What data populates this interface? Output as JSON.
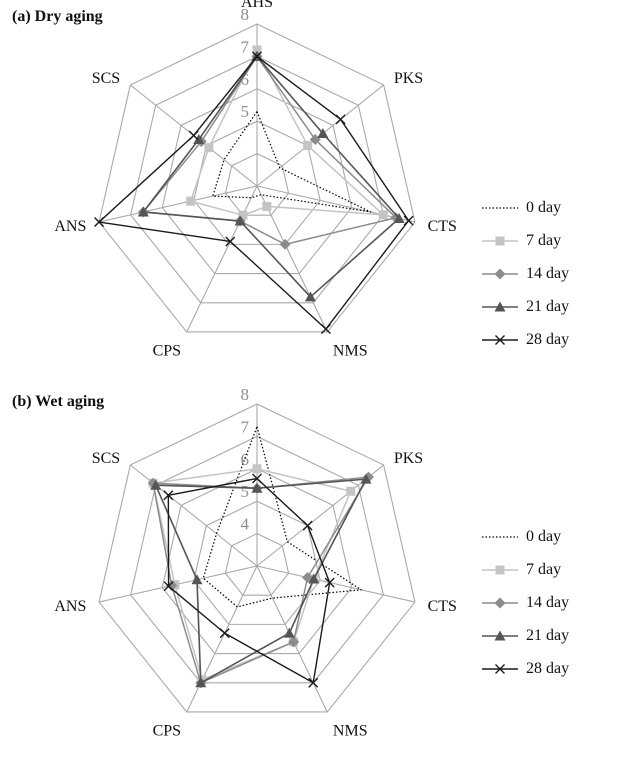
{
  "figure": {
    "legend": [
      "0 day",
      "7 day",
      "14 day",
      "21 day",
      "28 day"
    ],
    "series_styles": [
      {
        "color": "#000000",
        "dash": "1.5,2",
        "marker": "none",
        "width": 1.2
      },
      {
        "color": "#c4c4c4",
        "dash": "",
        "marker": "square",
        "width": 1.5
      },
      {
        "color": "#8c8c8c",
        "dash": "",
        "marker": "diamond",
        "width": 1.5
      },
      {
        "color": "#555555",
        "dash": "",
        "marker": "triangle",
        "width": 1.6
      },
      {
        "color": "#1a1a1a",
        "dash": "",
        "marker": "x",
        "width": 1.4
      }
    ]
  },
  "chart_data": [
    {
      "type": "radar",
      "title": "(a) Dry aging",
      "axes": [
        "AHS",
        "PKS",
        "CTS",
        "NMS",
        "CPS",
        "ANS",
        "SCS"
      ],
      "rlim": [
        3,
        8
      ],
      "ticks": [
        4,
        5,
        6,
        7,
        8
      ],
      "tick_labels": [
        "",
        "5",
        "6",
        "7",
        "8"
      ],
      "series": [
        {
          "name": "0 day",
          "values": [
            5.3,
            3.9,
            6.6,
            3.3,
            3.4,
            4.4,
            4.3
          ]
        },
        {
          "name": "7 day",
          "values": [
            7.2,
            5.0,
            7.0,
            3.7,
            4.0,
            5.1,
            4.9
          ]
        },
        {
          "name": "14 day",
          "values": [
            7.0,
            5.3,
            7.4,
            5.0,
            4.2,
            6.6,
            5.2
          ]
        },
        {
          "name": "21 day",
          "values": [
            7.0,
            5.6,
            7.5,
            6.8,
            4.2,
            6.6,
            5.3
          ]
        },
        {
          "name": "28 day",
          "values": [
            7.0,
            6.3,
            7.8,
            7.9,
            4.9,
            8.0,
            5.5
          ]
        }
      ]
    },
    {
      "type": "radar",
      "title": "(b) Wet aging",
      "axes": [
        "AHS",
        "PKS",
        "CTS",
        "NMS",
        "CPS",
        "ANS",
        "SCS"
      ],
      "rlim": [
        3,
        8
      ],
      "ticks": [
        4,
        5,
        6,
        7,
        8
      ],
      "tick_labels": [
        "4",
        "5",
        "6",
        "7",
        "8"
      ],
      "series": [
        {
          "name": "0 day",
          "values": [
            7.3,
            4.2,
            6.3,
            4.1,
            4.4,
            4.7,
            4.6
          ]
        },
        {
          "name": "7 day",
          "values": [
            6.0,
            6.7,
            4.8,
            5.6,
            6.9,
            5.6,
            7.1
          ]
        },
        {
          "name": "14 day",
          "values": [
            5.4,
            7.4,
            4.6,
            5.6,
            7.0,
            5.7,
            7.1
          ]
        },
        {
          "name": "21 day",
          "values": [
            5.4,
            7.3,
            4.8,
            5.3,
            7.0,
            4.9,
            7.0
          ]
        },
        {
          "name": "28 day",
          "values": [
            5.7,
            5.0,
            5.3,
            7.0,
            5.3,
            5.8,
            6.5
          ]
        }
      ]
    }
  ]
}
